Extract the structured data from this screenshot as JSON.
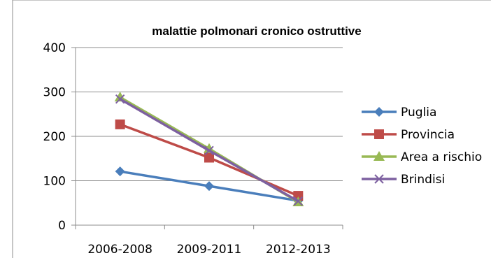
{
  "chart_data": {
    "type": "line",
    "title": "malattie polmonari cronico ostruttive",
    "xlabel": "",
    "ylabel": "",
    "categories": [
      "2006-2008",
      "2009-2011",
      "2012-2013"
    ],
    "ylim": [
      0,
      400
    ],
    "yticks": [
      "0",
      "100",
      "200",
      "300",
      "400"
    ],
    "grid": true,
    "legend_position": "right",
    "series": [
      {
        "name": "Puglia",
        "values": [
          121,
          88,
          55
        ],
        "color": "#4A7EBB",
        "marker": "diamond"
      },
      {
        "name": "Provincia",
        "values": [
          227,
          152,
          66
        ],
        "color": "#BE4B48",
        "marker": "square"
      },
      {
        "name": "Area a rischio",
        "values": [
          288,
          172,
          52
        ],
        "color": "#98B954",
        "marker": "triangle"
      },
      {
        "name": "Brindisi",
        "values": [
          284,
          168,
          54
        ],
        "color": "#7D60A0",
        "marker": "x"
      }
    ]
  }
}
